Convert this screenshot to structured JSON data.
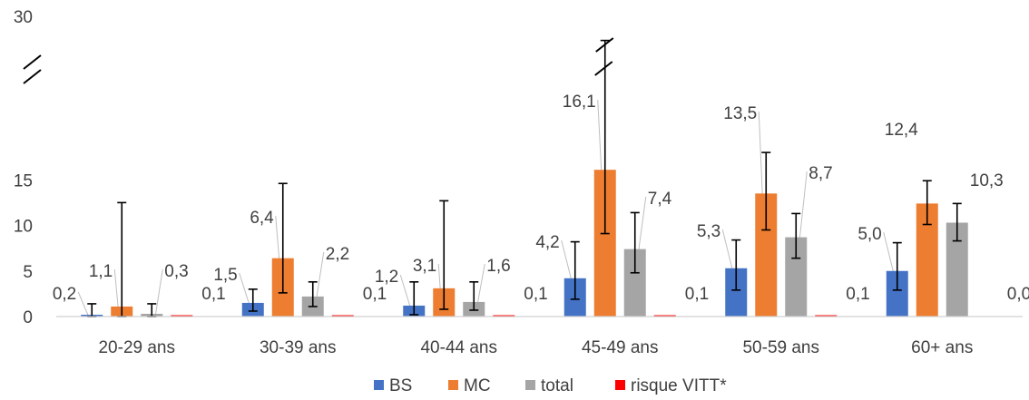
{
  "chart_data": {
    "type": "bar",
    "categories": [
      "20-29 ans",
      "30-39 ans",
      "40-44 ans",
      "45-49 ans",
      "50-59 ans",
      "60+ ans"
    ],
    "series": [
      {
        "name": "BS",
        "color": "#4472C4",
        "values": [
          0.2,
          1.5,
          1.2,
          4.2,
          5.3,
          5.0
        ],
        "error_low": [
          0.0,
          0.6,
          0.2,
          1.9,
          2.9,
          2.9
        ],
        "error_high": [
          1.4,
          3.0,
          3.8,
          8.2,
          8.4,
          8.1
        ],
        "labels": [
          "0,2",
          "1,5",
          "1,2",
          "4,2",
          "5,3",
          "5,0"
        ]
      },
      {
        "name": "MC",
        "color": "#ED7D31",
        "values": [
          1.1,
          6.4,
          3.1,
          16.1,
          13.5,
          12.4
        ],
        "error_low": [
          0.0,
          2.6,
          0.8,
          9.1,
          9.5,
          10.1
        ],
        "error_high": [
          12.5,
          14.6,
          12.7,
          27.5,
          18.0,
          14.9
        ],
        "labels": [
          "1,1",
          "6,4",
          "3,1",
          "16,1",
          "13,5",
          "12,4"
        ]
      },
      {
        "name": "total",
        "color": "#A5A5A5",
        "values": [
          0.3,
          2.2,
          1.6,
          7.4,
          8.7,
          10.3
        ],
        "error_low": [
          0.0,
          1.1,
          0.7,
          4.8,
          6.4,
          8.3
        ],
        "error_high": [
          1.4,
          3.8,
          3.8,
          11.4,
          11.3,
          12.4
        ],
        "labels": [
          "0,3",
          "2,2",
          "1,6",
          "7,4",
          "8,7",
          "10,3"
        ]
      },
      {
        "name": "risque VITT*",
        "color": "#FF0000",
        "values": [
          0.1,
          0.1,
          0.1,
          0.1,
          0.1,
          0.0
        ],
        "labels": [
          "0,1",
          "0,1",
          "0,1",
          "0,1",
          "0,1",
          "0,0"
        ]
      }
    ],
    "y_ticks": [
      {
        "value": 0,
        "label": "0"
      },
      {
        "value": 5,
        "label": "5"
      },
      {
        "value": 10,
        "label": "10"
      },
      {
        "value": 15,
        "label": "15"
      },
      {
        "value": 30,
        "label": "30"
      }
    ],
    "axis_break": {
      "from": 18,
      "to": 28
    },
    "ylim": [
      0,
      30
    ],
    "title": "",
    "xlabel": "",
    "ylabel": "",
    "legend": "bottom-center",
    "grid": false
  }
}
